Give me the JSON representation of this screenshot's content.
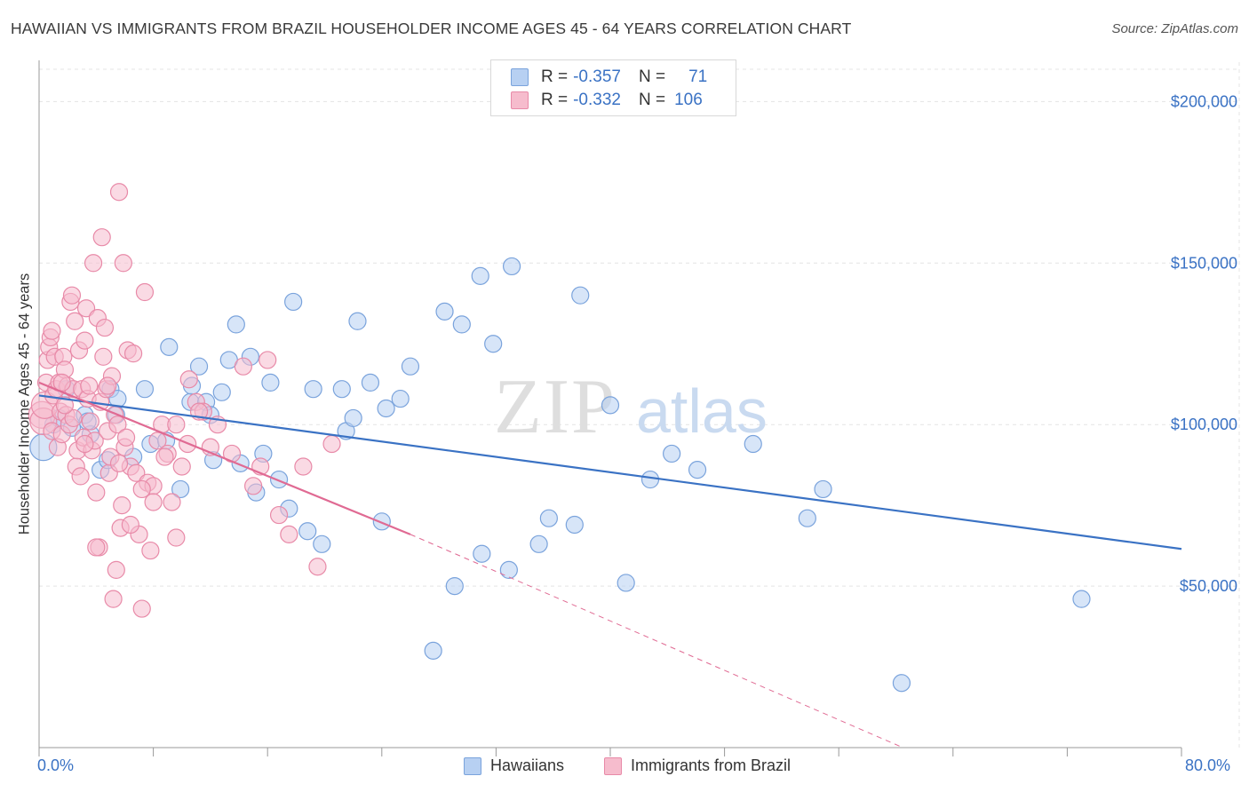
{
  "header": {
    "title": "HAWAIIAN VS IMMIGRANTS FROM BRAZIL HOUSEHOLDER INCOME AGES 45 - 64 YEARS CORRELATION CHART",
    "source": "Source: ZipAtlas.com"
  },
  "watermark": {
    "zip": "ZIP",
    "atlas": "atlas"
  },
  "legend": {
    "rows": [
      {
        "r_label": "R = ",
        "r_value": "-0.357",
        "n_label": "N = ",
        "n_value": "71"
      },
      {
        "r_label": "R = ",
        "r_value": "-0.332",
        "n_label": "N = ",
        "n_value": "106"
      }
    ]
  },
  "colors": {
    "blue_fill": "#b7d0f2",
    "blue_stroke": "#7aa3dc",
    "blue_line": "#3a72c4",
    "pink_fill": "#f6bccd",
    "pink_stroke": "#e88aa8",
    "pink_line": "#e06a93",
    "grid": "#e4e4e4",
    "axis_text": "#3a72c4"
  },
  "chart_data": {
    "type": "scatter",
    "title": "HAWAIIAN VS IMMIGRANTS FROM BRAZIL HOUSEHOLDER INCOME AGES 45 - 64 YEARS CORRELATION CHART",
    "xlabel": "",
    "ylabel": "Householder Income Ages 45 - 64 years",
    "xlim": [
      0,
      80
    ],
    "ylim": [
      0,
      210000
    ],
    "x_tick_labels": [
      "0.0%",
      "80.0%"
    ],
    "y_ticks": [
      50000,
      100000,
      150000,
      200000
    ],
    "y_tick_labels": [
      "$50,000",
      "$100,000",
      "$150,000",
      "$200,000"
    ],
    "grid": true,
    "legend_position": "top-center",
    "series": [
      {
        "name": "Hawaiians",
        "color": "#7aa3dc",
        "trend": {
          "x": [
            0,
            80
          ],
          "y": [
            109000,
            61500
          ],
          "style": "solid"
        },
        "points": [
          [
            0.3,
            93000
          ],
          [
            1.0,
            100000
          ],
          [
            1.4,
            102000
          ],
          [
            1.9,
            111000
          ],
          [
            2.3,
            99000
          ],
          [
            3.2,
            103000
          ],
          [
            3.6,
            97000
          ],
          [
            4.3,
            86000
          ],
          [
            4.8,
            89000
          ],
          [
            5.0,
            111000
          ],
          [
            5.5,
            108000
          ],
          [
            6.6,
            90000
          ],
          [
            7.4,
            111000
          ],
          [
            7.8,
            94000
          ],
          [
            8.9,
            95000
          ],
          [
            9.9,
            80000
          ],
          [
            10.6,
            107000
          ],
          [
            10.7,
            112000
          ],
          [
            11.2,
            118000
          ],
          [
            11.7,
            107000
          ],
          [
            12.0,
            103000
          ],
          [
            12.2,
            89000
          ],
          [
            13.3,
            120000
          ],
          [
            13.8,
            131000
          ],
          [
            14.1,
            88000
          ],
          [
            14.8,
            121000
          ],
          [
            15.2,
            79000
          ],
          [
            15.7,
            91000
          ],
          [
            16.2,
            113000
          ],
          [
            16.8,
            83000
          ],
          [
            17.5,
            74000
          ],
          [
            17.8,
            138000
          ],
          [
            18.8,
            67000
          ],
          [
            19.2,
            111000
          ],
          [
            19.8,
            63000
          ],
          [
            21.2,
            111000
          ],
          [
            21.5,
            98000
          ],
          [
            22.0,
            102000
          ],
          [
            22.3,
            132000
          ],
          [
            23.2,
            113000
          ],
          [
            24.3,
            105000
          ],
          [
            24.0,
            70000
          ],
          [
            25.3,
            108000
          ],
          [
            26.0,
            118000
          ],
          [
            27.6,
            30000
          ],
          [
            28.4,
            135000
          ],
          [
            29.1,
            50000
          ],
          [
            29.6,
            131000
          ],
          [
            30.9,
            146000
          ],
          [
            31.0,
            60000
          ],
          [
            31.8,
            125000
          ],
          [
            32.9,
            55000
          ],
          [
            33.1,
            149000
          ],
          [
            35.0,
            63000
          ],
          [
            35.7,
            71000
          ],
          [
            37.5,
            69000
          ],
          [
            37.9,
            140000
          ],
          [
            40.0,
            106000
          ],
          [
            41.1,
            51000
          ],
          [
            42.8,
            83000
          ],
          [
            44.3,
            91000
          ],
          [
            46.1,
            86000
          ],
          [
            50.0,
            94000
          ],
          [
            53.8,
            71000
          ],
          [
            54.9,
            80000
          ],
          [
            60.4,
            20000
          ],
          [
            73.0,
            46000
          ],
          [
            9.1,
            124000
          ],
          [
            5.4,
            103000
          ],
          [
            3.4,
            101000
          ],
          [
            12.8,
            110000
          ]
        ]
      },
      {
        "name": "Immigrants from Brazil",
        "color": "#e88aa8",
        "trend": {
          "x": [
            0,
            26
          ],
          "y": [
            113000,
            66000
          ],
          "style": "solid",
          "extend_to": [
            60.5,
            0
          ],
          "extend_style": "dashed"
        },
        "points": [
          [
            0.2,
            103000
          ],
          [
            0.3,
            101000
          ],
          [
            0.4,
            106000
          ],
          [
            0.5,
            113000
          ],
          [
            0.6,
            120000
          ],
          [
            0.7,
            124000
          ],
          [
            0.8,
            127000
          ],
          [
            0.9,
            98000
          ],
          [
            1.0,
            109000
          ],
          [
            1.1,
            121000
          ],
          [
            1.2,
            111000
          ],
          [
            1.3,
            93000
          ],
          [
            1.4,
            113000
          ],
          [
            1.5,
            104000
          ],
          [
            1.6,
            97000
          ],
          [
            1.7,
            121000
          ],
          [
            1.8,
            117000
          ],
          [
            1.9,
            103000
          ],
          [
            2.0,
            112000
          ],
          [
            2.1,
            100000
          ],
          [
            2.2,
            138000
          ],
          [
            2.3,
            140000
          ],
          [
            2.4,
            111000
          ],
          [
            2.5,
            132000
          ],
          [
            2.6,
            87000
          ],
          [
            2.7,
            92000
          ],
          [
            2.8,
            123000
          ],
          [
            2.9,
            84000
          ],
          [
            3.0,
            111000
          ],
          [
            3.1,
            96000
          ],
          [
            3.2,
            126000
          ],
          [
            3.3,
            136000
          ],
          [
            3.4,
            108000
          ],
          [
            3.5,
            112000
          ],
          [
            3.6,
            101000
          ],
          [
            3.7,
            92000
          ],
          [
            3.8,
            150000
          ],
          [
            3.9,
            95000
          ],
          [
            4.0,
            79000
          ],
          [
            4.1,
            133000
          ],
          [
            4.2,
            62000
          ],
          [
            4.3,
            107000
          ],
          [
            4.4,
            158000
          ],
          [
            4.5,
            121000
          ],
          [
            4.6,
            130000
          ],
          [
            4.7,
            111000
          ],
          [
            4.8,
            98000
          ],
          [
            4.9,
            85000
          ],
          [
            5.0,
            90000
          ],
          [
            5.1,
            115000
          ],
          [
            5.2,
            46000
          ],
          [
            5.3,
            103000
          ],
          [
            5.4,
            55000
          ],
          [
            5.5,
            100000
          ],
          [
            5.6,
            172000
          ],
          [
            5.7,
            68000
          ],
          [
            5.8,
            75000
          ],
          [
            5.9,
            150000
          ],
          [
            6.0,
            93000
          ],
          [
            6.1,
            96000
          ],
          [
            6.2,
            123000
          ],
          [
            6.4,
            87000
          ],
          [
            6.6,
            122000
          ],
          [
            6.8,
            85000
          ],
          [
            7.0,
            66000
          ],
          [
            7.2,
            43000
          ],
          [
            7.4,
            141000
          ],
          [
            7.6,
            82000
          ],
          [
            7.8,
            61000
          ],
          [
            8.0,
            81000
          ],
          [
            8.3,
            95000
          ],
          [
            8.6,
            100000
          ],
          [
            9.0,
            91000
          ],
          [
            9.3,
            76000
          ],
          [
            9.6,
            65000
          ],
          [
            10.0,
            87000
          ],
          [
            10.5,
            114000
          ],
          [
            11.0,
            107000
          ],
          [
            11.5,
            104000
          ],
          [
            12.0,
            93000
          ],
          [
            12.5,
            100000
          ],
          [
            13.5,
            91000
          ],
          [
            14.3,
            118000
          ],
          [
            15.0,
            81000
          ],
          [
            15.5,
            87000
          ],
          [
            16.0,
            120000
          ],
          [
            16.8,
            72000
          ],
          [
            17.5,
            66000
          ],
          [
            18.5,
            87000
          ],
          [
            19.5,
            56000
          ],
          [
            20.5,
            94000
          ],
          [
            0.9,
            129000
          ],
          [
            1.6,
            113000
          ],
          [
            2.4,
            102000
          ],
          [
            3.2,
            94000
          ],
          [
            4.0,
            62000
          ],
          [
            4.8,
            112000
          ],
          [
            5.6,
            88000
          ],
          [
            6.4,
            69000
          ],
          [
            7.2,
            80000
          ],
          [
            8.0,
            76000
          ],
          [
            8.8,
            90000
          ],
          [
            9.6,
            100000
          ],
          [
            10.4,
            94000
          ],
          [
            11.2,
            104000
          ],
          [
            1.8,
            106000
          ]
        ]
      }
    ]
  },
  "bottom_legend": {
    "items": [
      {
        "label": "Hawaiians"
      },
      {
        "label": "Immigrants from Brazil"
      }
    ]
  }
}
